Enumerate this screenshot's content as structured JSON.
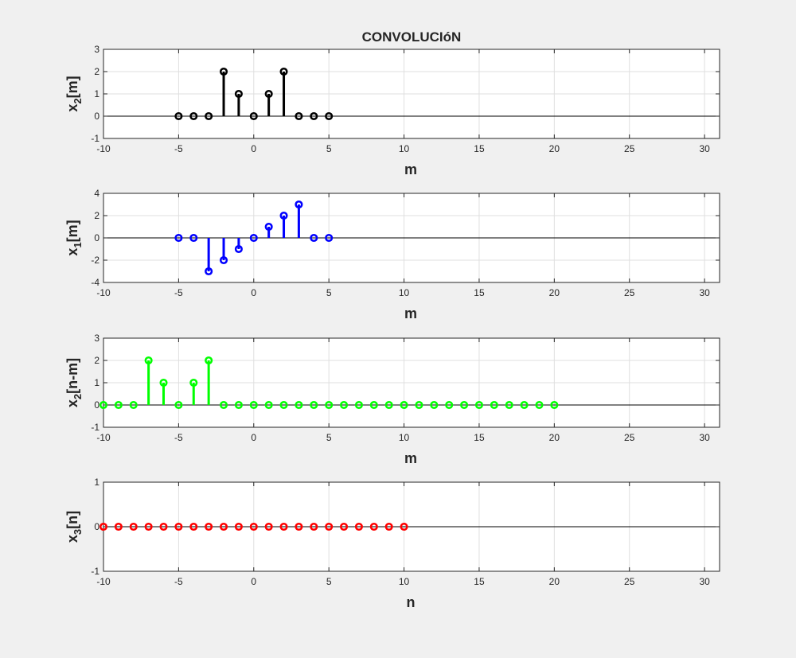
{
  "figure": {
    "title": "CONVOLUCIóN",
    "background": "#f0f0f0",
    "axes_background": "#ffffff"
  },
  "chart_data": [
    {
      "type": "stem",
      "title": "CONVOLUCIóN",
      "ylabel_base": "x",
      "ylabel_sub": "2",
      "ylabel_rest": "[m]",
      "xlabel": "m",
      "xlim": [
        -10,
        31
      ],
      "ylim": [
        -1,
        3
      ],
      "xticks": [
        -10,
        -5,
        0,
        5,
        10,
        15,
        20,
        25,
        30
      ],
      "yticks": [
        -1,
        0,
        1,
        2,
        3
      ],
      "grid": true,
      "color": "#000000",
      "series": [
        {
          "x": [
            -5,
            -4,
            -3,
            -2,
            -1,
            0,
            1,
            2,
            3,
            4,
            5
          ],
          "y": [
            0,
            0,
            0,
            2,
            1,
            0,
            1,
            2,
            0,
            0,
            0
          ]
        }
      ]
    },
    {
      "type": "stem",
      "ylabel_base": "x",
      "ylabel_sub": "1",
      "ylabel_rest": "[m]",
      "xlabel": "m",
      "xlim": [
        -10,
        31
      ],
      "ylim": [
        -4,
        4
      ],
      "xticks": [
        -10,
        -5,
        0,
        5,
        10,
        15,
        20,
        25,
        30
      ],
      "yticks": [
        -4,
        -2,
        0,
        2,
        4
      ],
      "grid": true,
      "color": "#0000ff",
      "series": [
        {
          "x": [
            -5,
            -4,
            -3,
            -2,
            -1,
            0,
            1,
            2,
            3,
            4,
            5
          ],
          "y": [
            0,
            0,
            -3,
            -2,
            -1,
            0,
            1,
            2,
            3,
            0,
            0
          ]
        }
      ]
    },
    {
      "type": "stem",
      "ylabel_base": "x",
      "ylabel_sub": "2",
      "ylabel_rest": "[n-m]",
      "xlabel": "m",
      "xlim": [
        -10,
        31
      ],
      "ylim": [
        -1,
        3
      ],
      "xticks": [
        -10,
        -5,
        0,
        5,
        10,
        15,
        20,
        25,
        30
      ],
      "yticks": [
        -1,
        0,
        1,
        2,
        3
      ],
      "grid": true,
      "color": "#00ff00",
      "series": [
        {
          "x": [
            -10,
            -9,
            -8,
            -7,
            -6,
            -5,
            -4,
            -3,
            -2,
            -1,
            0,
            1,
            2,
            3,
            4,
            5,
            6,
            7,
            8,
            9,
            10,
            11,
            12,
            13,
            14,
            15,
            16,
            17,
            18,
            19,
            20
          ],
          "y": [
            0,
            0,
            0,
            2,
            1,
            0,
            1,
            2,
            0,
            0,
            0,
            0,
            0,
            0,
            0,
            0,
            0,
            0,
            0,
            0,
            0,
            0,
            0,
            0,
            0,
            0,
            0,
            0,
            0,
            0,
            0
          ]
        }
      ]
    },
    {
      "type": "stem",
      "ylabel_base": "x",
      "ylabel_sub": "3",
      "ylabel_rest": "[n]",
      "xlabel": "n",
      "xlim": [
        -10,
        31
      ],
      "ylim": [
        -1,
        1
      ],
      "xticks": [
        -10,
        -5,
        0,
        5,
        10,
        15,
        20,
        25,
        30
      ],
      "yticks": [
        -1,
        0,
        1
      ],
      "grid": true,
      "color": "#ff0000",
      "series": [
        {
          "x": [
            -10,
            -9,
            -8,
            -7,
            -6,
            -5,
            -4,
            -3,
            -2,
            -1,
            0,
            1,
            2,
            3,
            4,
            5,
            6,
            7,
            8,
            9,
            10
          ],
          "y": [
            0,
            0,
            0,
            0,
            0,
            0,
            0,
            0,
            0,
            0,
            0,
            0,
            0,
            0,
            0,
            0,
            0,
            0,
            0,
            0,
            0
          ]
        }
      ]
    }
  ]
}
